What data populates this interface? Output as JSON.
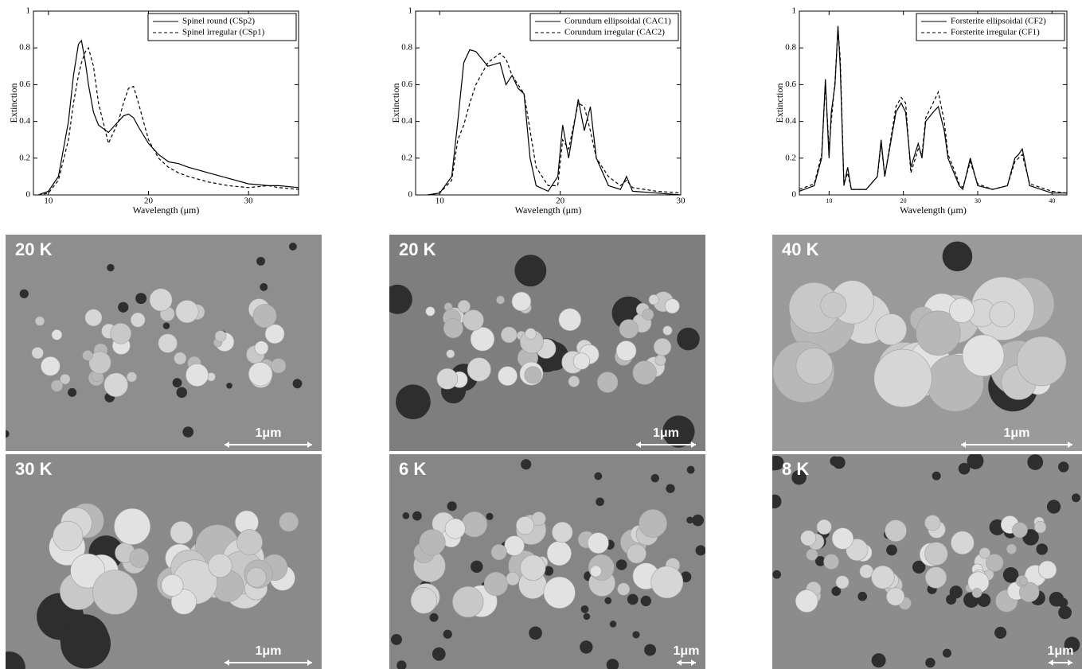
{
  "chart_data": [
    {
      "type": "line",
      "ylabel": "Extinction",
      "xlabel": "Wavelength (μm)",
      "legend": "upper right",
      "xlim": [
        8.5,
        35
      ],
      "xticks": [
        10,
        20,
        30
      ],
      "ylim": [
        0,
        1
      ],
      "yticks": [
        0,
        0.2,
        0.4,
        0.6,
        0.8,
        1
      ],
      "x": [
        9,
        10,
        11,
        12,
        12.5,
        13,
        13.3,
        13.7,
        14,
        14.5,
        15,
        16,
        17,
        17.5,
        18,
        18.5,
        19,
        20,
        21,
        22,
        23,
        24,
        26,
        28,
        30,
        32,
        33,
        35
      ],
      "series": [
        {
          "name": "Spinel round (CSp2)",
          "color": "#000000",
          "dash": "solid",
          "values": [
            0,
            0.02,
            0.1,
            0.4,
            0.65,
            0.82,
            0.84,
            0.72,
            0.6,
            0.45,
            0.38,
            0.34,
            0.4,
            0.43,
            0.44,
            0.42,
            0.37,
            0.28,
            0.22,
            0.18,
            0.17,
            0.15,
            0.12,
            0.09,
            0.06,
            0.05,
            0.05,
            0.04
          ]
        },
        {
          "name": "Spinel irregular (CSp1)",
          "color": "#000000",
          "dash": "dashed",
          "values": [
            0,
            0.01,
            0.08,
            0.3,
            0.5,
            0.65,
            0.72,
            0.78,
            0.8,
            0.7,
            0.5,
            0.28,
            0.4,
            0.5,
            0.58,
            0.59,
            0.5,
            0.3,
            0.2,
            0.15,
            0.12,
            0.1,
            0.07,
            0.05,
            0.04,
            0.05,
            0.04,
            0.03
          ]
        }
      ]
    },
    {
      "type": "line",
      "ylabel": "Extinction",
      "xlabel": "Wavelength (μm)",
      "legend": "upper right",
      "xlim": [
        8,
        30
      ],
      "xticks": [
        10,
        20,
        30
      ],
      "ylim": [
        0,
        1
      ],
      "yticks": [
        0,
        0.2,
        0.4,
        0.6,
        0.8,
        1
      ],
      "x": [
        9,
        10,
        11,
        11.5,
        12,
        12.5,
        13,
        14,
        15,
        15.5,
        16,
        16.5,
        17,
        17.5,
        18,
        19,
        19.8,
        20.2,
        20.7,
        21.5,
        22,
        22.5,
        23,
        24,
        25,
        25.5,
        26,
        28,
        30
      ],
      "series": [
        {
          "name": "Corundum ellipsoidal (CAC1)",
          "color": "#000000",
          "dash": "solid",
          "values": [
            0,
            0.01,
            0.1,
            0.4,
            0.72,
            0.79,
            0.78,
            0.7,
            0.72,
            0.6,
            0.65,
            0.58,
            0.55,
            0.2,
            0.05,
            0.02,
            0.1,
            0.38,
            0.2,
            0.52,
            0.35,
            0.48,
            0.2,
            0.05,
            0.03,
            0.1,
            0.02,
            0.01,
            0
          ]
        },
        {
          "name": "Corundum irregular (CAC2)",
          "color": "#000000",
          "dash": "dashed",
          "values": [
            0,
            0.01,
            0.08,
            0.3,
            0.38,
            0.5,
            0.6,
            0.72,
            0.77,
            0.74,
            0.65,
            0.6,
            0.55,
            0.35,
            0.15,
            0.05,
            0.05,
            0.3,
            0.25,
            0.5,
            0.48,
            0.35,
            0.2,
            0.1,
            0.05,
            0.08,
            0.04,
            0.02,
            0.01
          ]
        }
      ]
    },
    {
      "type": "line",
      "ylabel": "Extinction",
      "xlabel": "Wavelength (μm)",
      "legend": "upper right",
      "xlim": [
        6,
        42
      ],
      "xticks": [
        10,
        20,
        30,
        40
      ],
      "ylim": [
        0,
        1
      ],
      "yticks": [
        0,
        0.2,
        0.4,
        0.6,
        0.8,
        1
      ],
      "x": [
        6,
        8,
        9,
        9.5,
        10,
        10.3,
        10.8,
        11.2,
        11.5,
        12,
        12.5,
        13,
        15,
        16.5,
        17,
        17.5,
        19,
        19.7,
        20.3,
        21,
        22,
        22.5,
        23,
        24,
        24.7,
        25.5,
        26,
        27,
        27.5,
        28,
        29,
        30,
        32,
        34,
        35,
        35.5,
        36,
        37,
        40,
        42
      ],
      "series": [
        {
          "name": "Forsterite ellipsoidal (CF2)",
          "color": "#000000",
          "dash": "solid",
          "values": [
            0.02,
            0.05,
            0.2,
            0.63,
            0.2,
            0.45,
            0.6,
            0.92,
            0.7,
            0.05,
            0.15,
            0.03,
            0.03,
            0.1,
            0.3,
            0.1,
            0.45,
            0.5,
            0.45,
            0.15,
            0.28,
            0.2,
            0.4,
            0.45,
            0.48,
            0.35,
            0.2,
            0.1,
            0.05,
            0.03,
            0.2,
            0.05,
            0.03,
            0.05,
            0.2,
            0.22,
            0.25,
            0.05,
            0.01,
            0.01
          ]
        },
        {
          "name": "Forsterite irregular (CF1)",
          "color": "#000000",
          "dash": "dashed",
          "values": [
            0.03,
            0.06,
            0.22,
            0.6,
            0.25,
            0.4,
            0.62,
            0.9,
            0.75,
            0.06,
            0.12,
            0.03,
            0.03,
            0.1,
            0.28,
            0.1,
            0.48,
            0.53,
            0.5,
            0.12,
            0.25,
            0.22,
            0.42,
            0.5,
            0.56,
            0.4,
            0.22,
            0.12,
            0.06,
            0.04,
            0.18,
            0.06,
            0.03,
            0.05,
            0.18,
            0.2,
            0.22,
            0.06,
            0.02,
            0.01
          ]
        }
      ]
    }
  ],
  "images": [
    {
      "label": "20 K",
      "scale": "1μm"
    },
    {
      "label": "20 K",
      "scale": "1μm"
    },
    {
      "label": "40 K",
      "scale": "1μm"
    },
    {
      "label": "30 K",
      "scale": "1μm"
    },
    {
      "label": "6 K",
      "scale": "1μm"
    },
    {
      "label": "8 K",
      "scale": "1μm"
    }
  ]
}
